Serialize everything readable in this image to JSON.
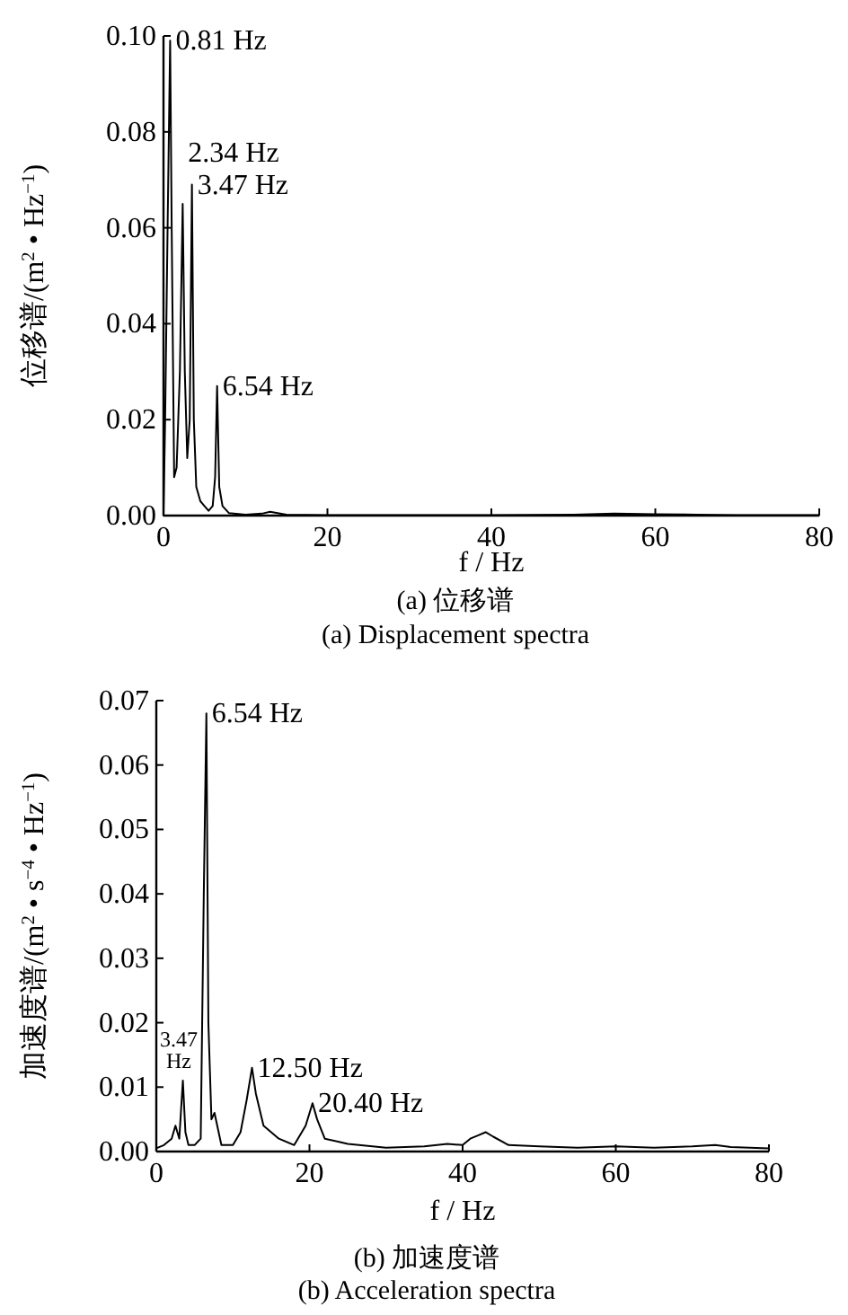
{
  "chart_data": [
    {
      "type": "line",
      "title": "(a) 位移谱",
      "subtitle": "(a) Displacement spectra",
      "xlabel": "f / Hz",
      "ylabel": "位移谱/(m$^{2}$ • Hz$^{−1}$)",
      "xlim": [
        0,
        80
      ],
      "ylim": [
        0,
        0.1
      ],
      "xticks": [
        0,
        20,
        40,
        60,
        80
      ],
      "yticks": [
        {
          "value": 0,
          "label": "0.00"
        },
        {
          "value": 0.02,
          "label": "0.02"
        },
        {
          "value": 0.04,
          "label": "0.04"
        },
        {
          "value": 0.06,
          "label": "0.06"
        },
        {
          "value": 0.08,
          "label": "0.08"
        },
        {
          "value": 0.1,
          "label": "0.10"
        }
      ],
      "grid": false,
      "series": [
        {
          "color": "#000000",
          "x": [
            0,
            0.2,
            0.5,
            0.81,
            1.0,
            1.3,
            1.6,
            2.0,
            2.34,
            2.6,
            2.9,
            3.2,
            3.47,
            3.7,
            4.0,
            4.5,
            5.0,
            5.5,
            6.0,
            6.3,
            6.54,
            6.8,
            7.2,
            8,
            10,
            12,
            13,
            15,
            20,
            30,
            40,
            50,
            55,
            60,
            65,
            70,
            80
          ],
          "values": [
            0,
            0.02,
            0.06,
            0.099,
            0.06,
            0.008,
            0.01,
            0.03,
            0.065,
            0.03,
            0.012,
            0.02,
            0.069,
            0.02,
            0.006,
            0.003,
            0.002,
            0.001,
            0.002,
            0.008,
            0.027,
            0.006,
            0.002,
            0.0005,
            0.0002,
            0.0004,
            0.0008,
            0.0002,
            0.0001,
            0.0001,
            0.0001,
            0.0002,
            0.0004,
            0.0003,
            0.0002,
            0.0001,
            0.0001
          ]
        }
      ],
      "annotations": [
        {
          "text": "0.81 Hz",
          "x": 0.81,
          "y": 0.099
        },
        {
          "text": "2.34 Hz",
          "x": 2.34,
          "y": 0.065
        },
        {
          "text": "3.47 Hz",
          "x": 3.47,
          "y": 0.069
        },
        {
          "text": "6.54 Hz",
          "x": 6.54,
          "y": 0.027
        }
      ]
    },
    {
      "type": "line",
      "title": "(b) 加速度谱",
      "subtitle": "(b) Acceleration spectra",
      "xlabel": "f / Hz",
      "ylabel": "加速度谱/(m$^{2}$ • s$^{−4}$ • Hz$^{−1}$)",
      "xlim": [
        0,
        80
      ],
      "ylim": [
        0,
        0.07
      ],
      "xticks": [
        0,
        20,
        40,
        60,
        80
      ],
      "yticks": [
        {
          "value": 0,
          "label": "0.00"
        },
        {
          "value": 0.01,
          "label": "0.01"
        },
        {
          "value": 0.02,
          "label": "0.02"
        },
        {
          "value": 0.03,
          "label": "0.03"
        },
        {
          "value": 0.04,
          "label": "0.04"
        },
        {
          "value": 0.05,
          "label": "0.05"
        },
        {
          "value": 0.06,
          "label": "0.06"
        },
        {
          "value": 0.07,
          "label": "0.07"
        }
      ],
      "grid": false,
      "series": [
        {
          "color": "#000000",
          "x": [
            0,
            1,
            2,
            2.5,
            3.0,
            3.47,
            3.8,
            4.2,
            5,
            5.8,
            6.2,
            6.54,
            6.8,
            7.2,
            7.6,
            8.5,
            10,
            11,
            11.8,
            12.5,
            13,
            14,
            15,
            16,
            18,
            19.5,
            20.4,
            21,
            22,
            25,
            30,
            35,
            38,
            40,
            41,
            42,
            43,
            44,
            46,
            50,
            55,
            60,
            65,
            70,
            73,
            75,
            80
          ],
          "values": [
            0.0005,
            0.001,
            0.002,
            0.004,
            0.002,
            0.011,
            0.003,
            0.001,
            0.001,
            0.002,
            0.04,
            0.068,
            0.02,
            0.005,
            0.006,
            0.001,
            0.001,
            0.003,
            0.008,
            0.013,
            0.009,
            0.004,
            0.003,
            0.002,
            0.001,
            0.004,
            0.0075,
            0.005,
            0.002,
            0.0012,
            0.0006,
            0.0008,
            0.0012,
            0.001,
            0.002,
            0.0025,
            0.003,
            0.0023,
            0.001,
            0.0008,
            0.0006,
            0.0008,
            0.0006,
            0.0008,
            0.001,
            0.0007,
            0.0005
          ]
        }
      ],
      "annotations": [
        {
          "text": "3.47 Hz",
          "x": 3.47,
          "y": 0.011
        },
        {
          "text": "6.54 Hz",
          "x": 6.54,
          "y": 0.068
        },
        {
          "text": "12.50 Hz",
          "x": 12.5,
          "y": 0.013
        },
        {
          "text": "20.40 Hz",
          "x": 20.4,
          "y": 0.0075
        }
      ]
    }
  ]
}
